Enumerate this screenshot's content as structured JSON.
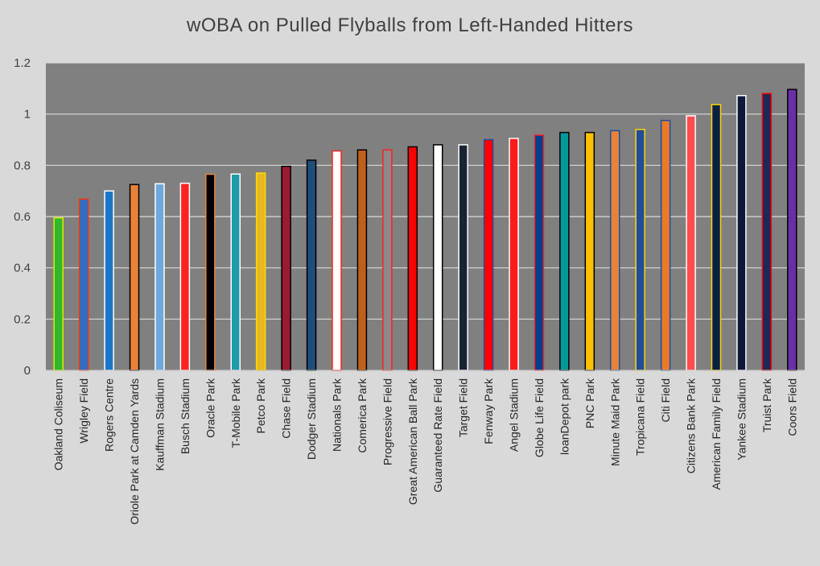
{
  "chart_data": {
    "type": "bar",
    "title": "wOBA on Pulled Flyballs from Left-Handed Hitters",
    "xlabel": "",
    "ylabel": "",
    "ylim": [
      0,
      1.2
    ],
    "yticks": [
      "0",
      "0.2",
      "0.4",
      "0.6",
      "0.8",
      "1",
      "1.2"
    ],
    "grid": true,
    "plot_background": "#808080",
    "categories": [
      "Oakland Coliseum",
      "Wrigley Field",
      "Rogers Centre",
      "Oriole Park at Camden Yards",
      "Kauffman Stadium",
      "Busch Stadium",
      "Oracle Park",
      "T-Mobile Park",
      "Petco Park",
      "Chase Field",
      "Dodger Stadium",
      "Nationals Park",
      "Comerica Park",
      "Progressive Field",
      "Great American Ball Park",
      "Guaranteed Rate Field",
      "Target Field",
      "Fenway Park",
      "Angel Stadium",
      "Globe Life Field",
      "loanDepot park",
      "PNC Park",
      "Minute Maid Park",
      "Tropicana Field",
      "Citi Field",
      "Citizens Bank Park",
      "American Family Field",
      "Yankee Stadium",
      "Truist Park",
      "Coors Field"
    ],
    "values": [
      0.595,
      0.668,
      0.7,
      0.725,
      0.728,
      0.73,
      0.765,
      0.766,
      0.77,
      0.796,
      0.82,
      0.856,
      0.86,
      0.86,
      0.872,
      0.88,
      0.88,
      0.9,
      0.905,
      0.918,
      0.928,
      0.928,
      0.935,
      0.94,
      0.975,
      0.993,
      1.037,
      1.072,
      1.08,
      1.096
    ],
    "fill_colors": [
      "#2eb82e",
      "#2e6dc4",
      "#1a75c9",
      "#e8823a",
      "#6fa8dc",
      "#ff2222",
      "#000000",
      "#1f9aa8",
      "#e8b820",
      "#9b1b30",
      "#1f4e79",
      "#ffffff",
      "#c0601a",
      "#8a8a8a",
      "#ff0000",
      "#ffffff",
      "#1a2333",
      "#ff0000",
      "#ff1a1a",
      "#003f8a",
      "#009999",
      "#ffc000",
      "#e8823a",
      "#1f4e9e",
      "#e87a2a",
      "#ff4d4d",
      "#0a1f44",
      "#0c1a3a",
      "#1a2a55",
      "#6a2fa8"
    ],
    "border_colors": [
      "#e6e600",
      "#ff3300",
      "#ffffff",
      "#000000",
      "#ffffff",
      "#ffffff",
      "#e8823a",
      "#ffffff",
      "#ffd700",
      "#000000",
      "#000000",
      "#ff2222",
      "#000000",
      "#ff2222",
      "#000000",
      "#000000",
      "#ffffff",
      "#1f4e9e",
      "#ffffff",
      "#ff2222",
      "#000000",
      "#000000",
      "#1f4e9e",
      "#ffd700",
      "#1f4e9e",
      "#ffffff",
      "#ffd700",
      "#ffffff",
      "#ff0000",
      "#000000"
    ]
  }
}
